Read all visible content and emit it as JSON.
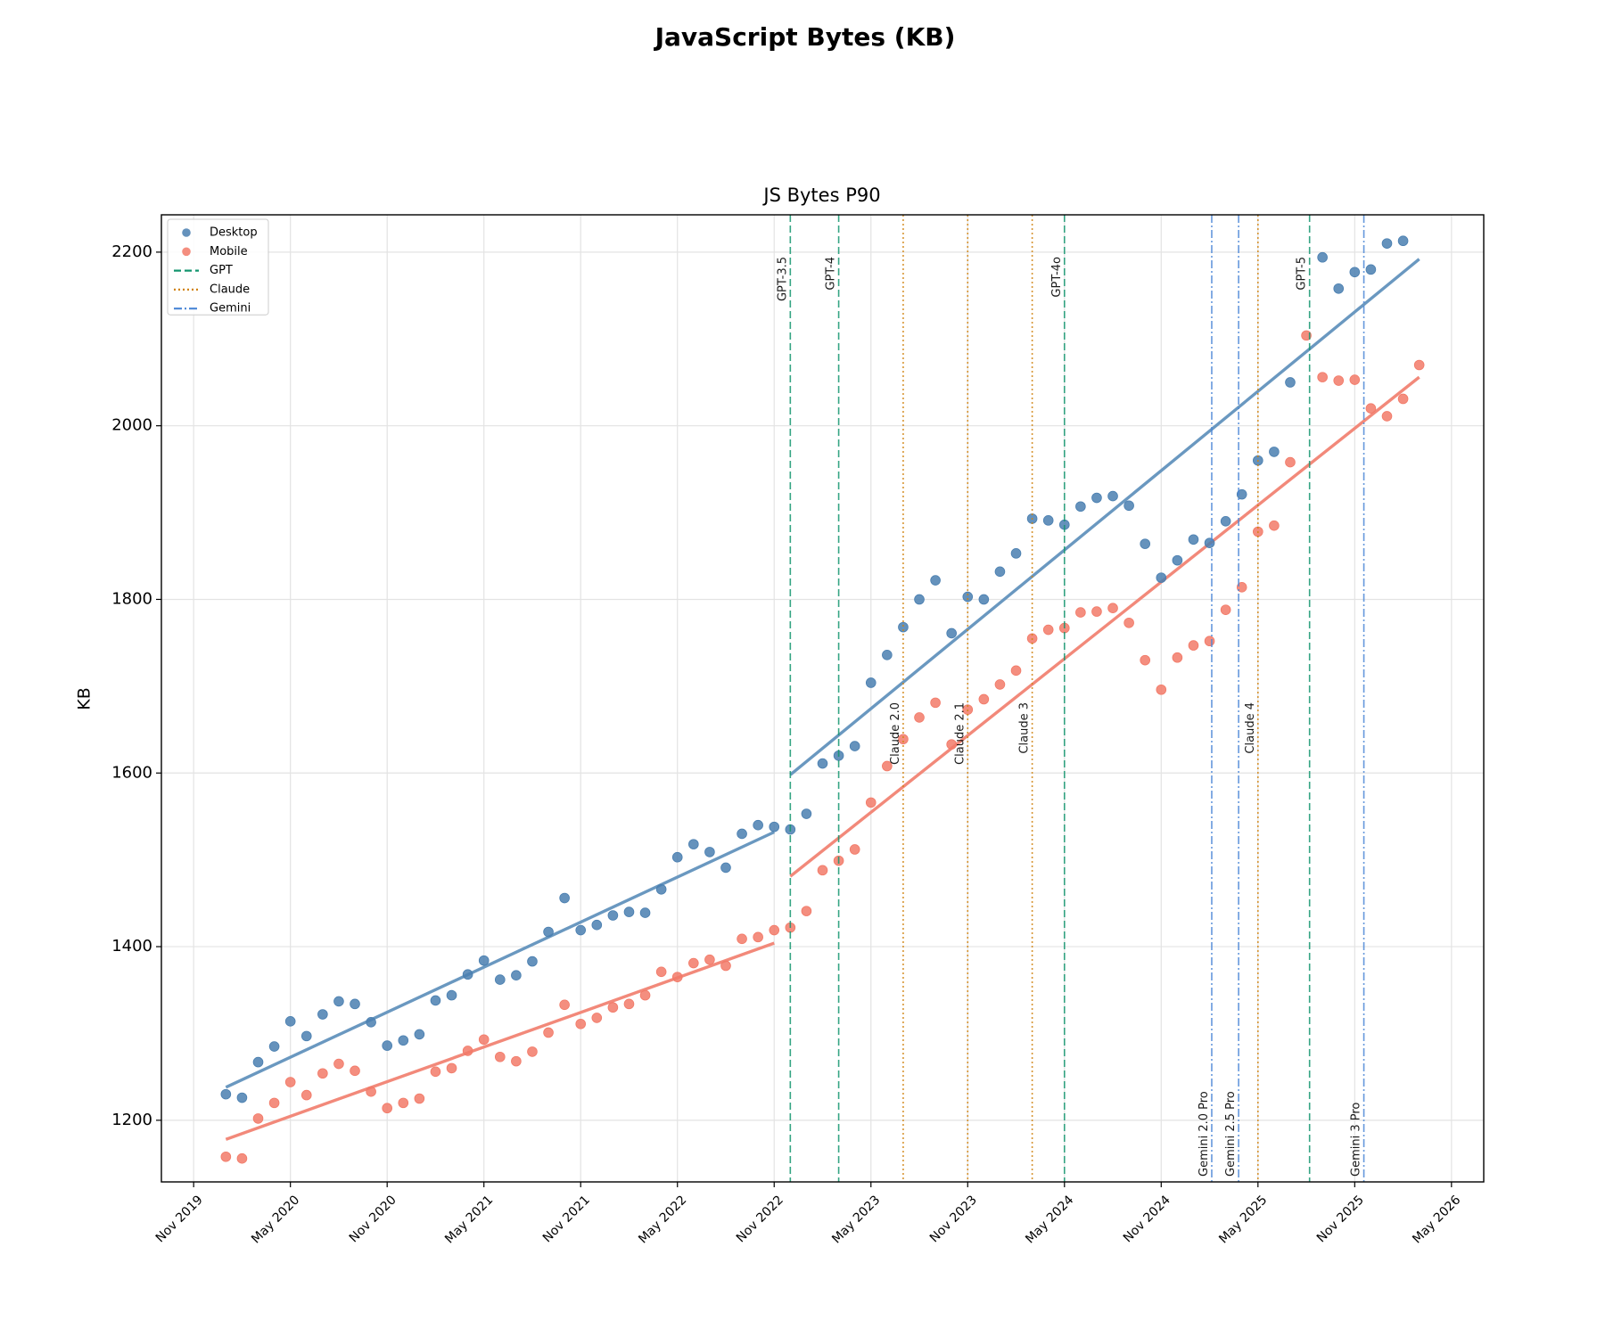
{
  "chart_data": {
    "type": "scatter",
    "title": "JavaScript Bytes (KB)",
    "subtitle": "JS Bytes P90",
    "y_label": "KB",
    "grid": true,
    "legend": "upper left",
    "xlim": [
      "2019-09",
      "2026-07"
    ],
    "xticks": [
      {
        "value": "2019-11",
        "label": "Nov 2019"
      },
      {
        "value": "2020-05",
        "label": "May 2020"
      },
      {
        "value": "2020-11",
        "label": "Nov 2020"
      },
      {
        "value": "2021-05",
        "label": "May 2021"
      },
      {
        "value": "2021-11",
        "label": "Nov 2021"
      },
      {
        "value": "2022-05",
        "label": "May 2022"
      },
      {
        "value": "2022-11",
        "label": "Nov 2022"
      },
      {
        "value": "2023-05",
        "label": "May 2023"
      },
      {
        "value": "2023-11",
        "label": "Nov 2023"
      },
      {
        "value": "2024-05",
        "label": "May 2024"
      },
      {
        "value": "2024-11",
        "label": "Nov 2024"
      },
      {
        "value": "2025-05",
        "label": "May 2025"
      },
      {
        "value": "2025-11",
        "label": "Nov 2025"
      },
      {
        "value": "2026-05",
        "label": "May 2026"
      }
    ],
    "ylim": [
      1129,
      2243
    ],
    "yticks": [
      1200,
      1400,
      1600,
      1800,
      2000,
      2200
    ],
    "x": [
      "2020-01",
      "2020-02",
      "2020-03",
      "2020-04",
      "2020-05",
      "2020-06",
      "2020-07",
      "2020-08",
      "2020-09",
      "2020-10",
      "2020-11",
      "2020-12",
      "2021-01",
      "2021-02",
      "2021-03",
      "2021-04",
      "2021-05",
      "2021-06",
      "2021-07",
      "2021-08",
      "2021-09",
      "2021-10",
      "2021-11",
      "2021-12",
      "2022-01",
      "2022-02",
      "2022-03",
      "2022-04",
      "2022-05",
      "2022-06",
      "2022-07",
      "2022-08",
      "2022-09",
      "2022-10",
      "2022-11",
      "2022-12",
      "2023-01",
      "2023-02",
      "2023-03",
      "2023-04",
      "2023-05",
      "2023-06",
      "2023-07",
      "2023-08",
      "2023-09",
      "2023-10",
      "2023-11",
      "2023-12",
      "2024-01",
      "2024-02",
      "2024-03",
      "2024-04",
      "2024-05",
      "2024-06",
      "2024-07",
      "2024-08",
      "2024-09",
      "2024-10",
      "2024-11",
      "2024-12",
      "2025-01",
      "2025-02",
      "2025-03",
      "2025-04",
      "2025-05",
      "2025-06",
      "2025-07",
      "2025-08",
      "2025-09",
      "2025-10",
      "2025-11",
      "2025-12",
      "2026-01",
      "2026-02",
      "2026-03"
    ],
    "series": [
      {
        "name": "Desktop",
        "color": "#4a7fb0",
        "values": [
          1230,
          1226,
          1267,
          1285,
          1314,
          1297,
          1322,
          1337,
          1334,
          1313,
          1286,
          1292,
          1299,
          1338,
          1344,
          1368,
          1384,
          1362,
          1367,
          1383,
          1417,
          1456,
          1419,
          1425,
          1436,
          1440,
          1439,
          1466,
          1503,
          1518,
          1509,
          1491,
          1530,
          1540,
          1538,
          1535,
          1553,
          1611,
          1620,
          1631,
          1704,
          1736,
          1768,
          1800,
          1822,
          1761,
          1803,
          1800,
          1832,
          1853,
          1893,
          1891,
          1886,
          1907,
          1917,
          1919,
          1908,
          1864,
          1825,
          1845,
          1869,
          1865,
          1890,
          1921,
          1960,
          1970,
          2050,
          null,
          2194,
          2158,
          2177,
          2180,
          2210,
          2213,
          null
        ]
      },
      {
        "name": "Mobile",
        "color": "#f27a68",
        "values": [
          1158,
          1156,
          1202,
          1220,
          1244,
          1229,
          1254,
          1265,
          1257,
          1233,
          1214,
          1220,
          1225,
          1256,
          1260,
          1280,
          1293,
          1273,
          1268,
          1279,
          1301,
          1333,
          1311,
          1318,
          1330,
          1334,
          1344,
          1371,
          1365,
          1381,
          1385,
          1378,
          1409,
          1411,
          1419,
          1422,
          1441,
          1488,
          1499,
          1512,
          1566,
          1608,
          1639,
          1664,
          1681,
          1633,
          1673,
          1685,
          1702,
          1718,
          1755,
          1765,
          1767,
          1785,
          1786,
          1790,
          1773,
          1730,
          1696,
          1733,
          1747,
          1752,
          1788,
          1814,
          1878,
          1885,
          1958,
          2104,
          2056,
          2052,
          2053,
          2020,
          2011,
          2031,
          2070
        ]
      }
    ],
    "trend_lines": [
      {
        "color": "#6a98c0",
        "x": [
          "2020-01",
          "2022-11"
        ],
        "values": [
          1238,
          1532
        ]
      },
      {
        "color": "#6a98c0",
        "x": [
          "2022-12",
          "2026-03"
        ],
        "values": [
          1598,
          2192
        ]
      },
      {
        "color": "#f2897a",
        "x": [
          "2020-01",
          "2022-11"
        ],
        "values": [
          1178,
          1404
        ]
      },
      {
        "color": "#f2897a",
        "x": [
          "2022-12",
          "2026-03"
        ],
        "values": [
          1481,
          2056
        ]
      }
    ],
    "event_groups": [
      {
        "name": "GPT",
        "color": "#13956f",
        "style": "dashed",
        "events": [
          {
            "x": "2022-12",
            "label": "GPT-3.5"
          },
          {
            "x": "2023-03",
            "label": "GPT-4"
          },
          {
            "x": "2024-05",
            "label": "GPT-4o"
          },
          {
            "x": "2025-08-07",
            "label": "GPT-5"
          }
        ]
      },
      {
        "name": "Claude",
        "color": "#d0820f",
        "style": "dotted",
        "events": [
          {
            "x": "2023-07",
            "label": "Claude 2.0"
          },
          {
            "x": "2023-11",
            "label": "Claude 2.1"
          },
          {
            "x": "2024-03",
            "label": "Claude 3"
          },
          {
            "x": "2025-05",
            "label": "Claude 4"
          }
        ]
      },
      {
        "name": "Gemini",
        "color": "#4a86d6",
        "style": "dashdot",
        "events": [
          {
            "x": "2025-02-05",
            "label": "Gemini 2.0 Pro"
          },
          {
            "x": "2025-03-25",
            "label": "Gemini 2.5 Pro"
          },
          {
            "x": "2025-11-18",
            "label": "Gemini 3 Pro"
          }
        ]
      }
    ]
  }
}
